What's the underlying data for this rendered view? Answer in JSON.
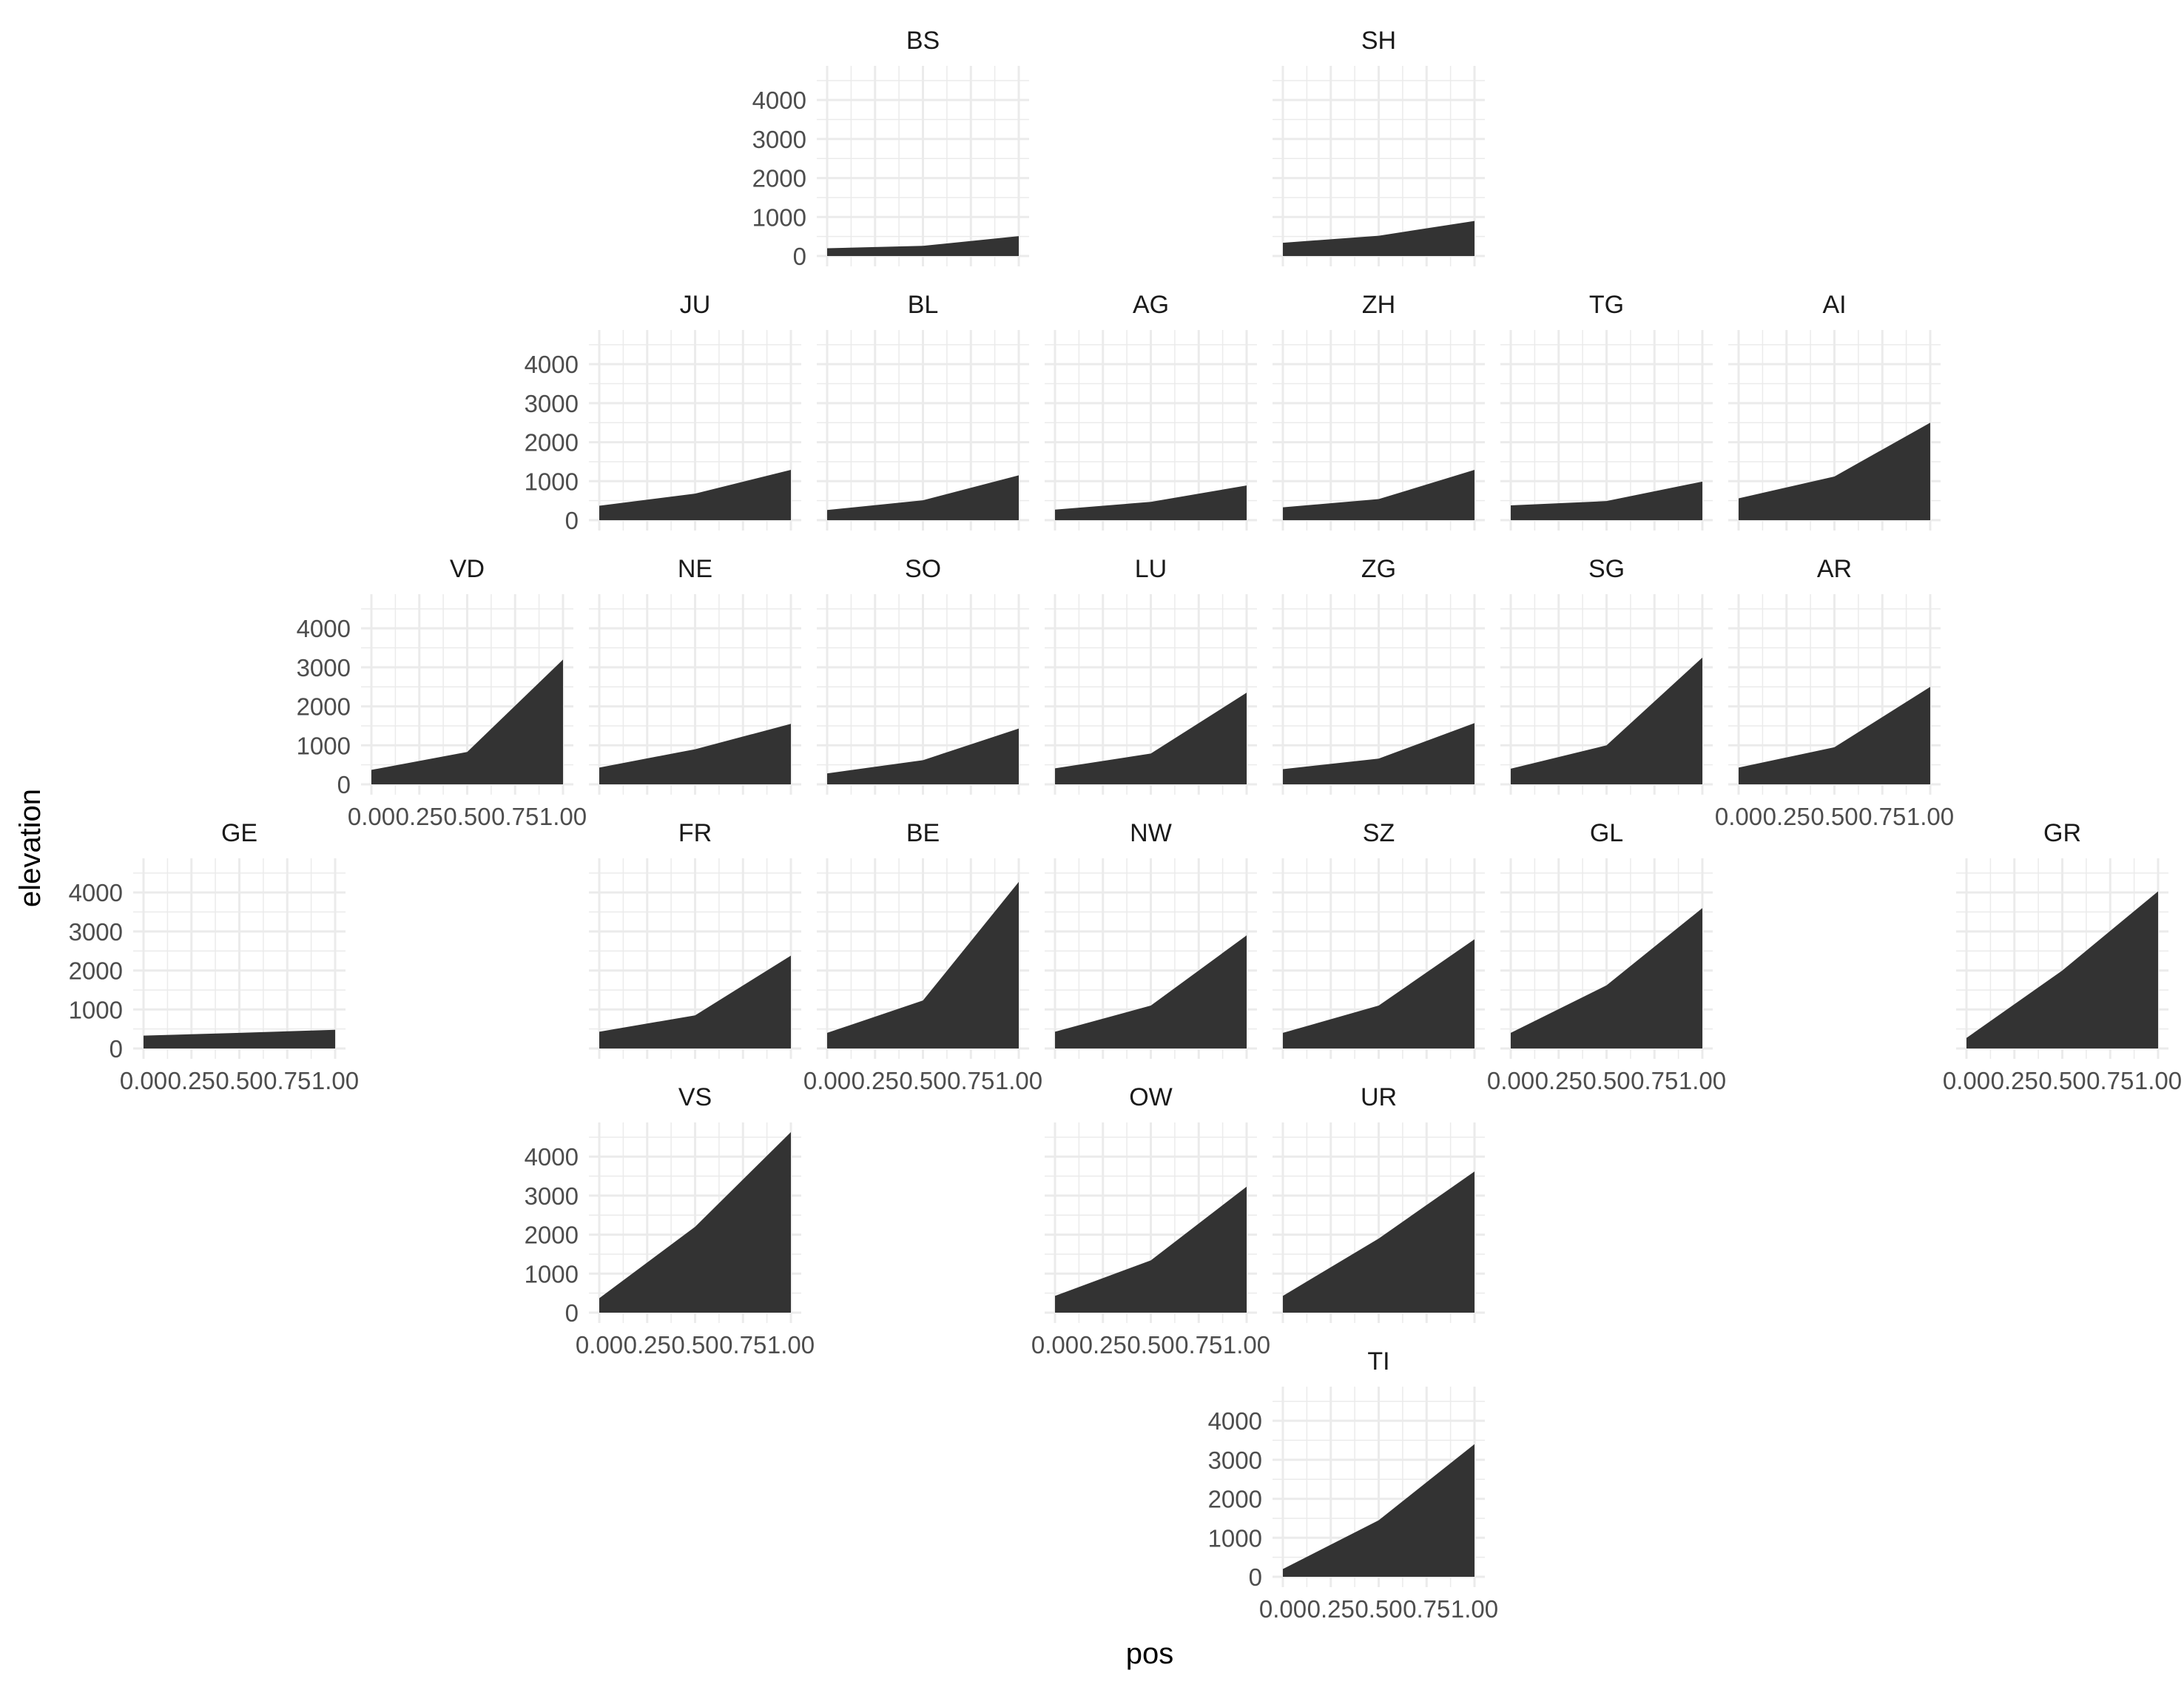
{
  "chart_data": {
    "type": "area",
    "xlabel": "pos",
    "ylabel": "elevation",
    "xlim": [
      0,
      1
    ],
    "ylim": [
      0,
      4800
    ],
    "x_ticks": [
      0.0,
      0.25,
      0.5,
      0.75,
      1.0
    ],
    "x_tick_labels": [
      "0.00",
      "0.25",
      "0.50",
      "0.75",
      "1.00"
    ],
    "y_ticks": [
      0,
      1000,
      2000,
      3000,
      4000
    ],
    "y_tick_labels": [
      "0",
      "1000",
      "2000",
      "3000",
      "4000"
    ],
    "fill_color": "#333333",
    "grid": true,
    "x": [
      0,
      0.5,
      1
    ],
    "panels": [
      {
        "name": "BS",
        "row": 0,
        "col": 3,
        "values": [
          200,
          260,
          510
        ],
        "show_y": true,
        "show_x": false
      },
      {
        "name": "SH",
        "row": 0,
        "col": 5,
        "values": [
          340,
          520,
          900
        ],
        "show_y": false,
        "show_x": false
      },
      {
        "name": "JU",
        "row": 1,
        "col": 2,
        "values": [
          370,
          680,
          1290
        ],
        "show_y": true,
        "show_x": false
      },
      {
        "name": "BL",
        "row": 1,
        "col": 3,
        "values": [
          260,
          510,
          1150
        ],
        "show_y": false,
        "show_x": false
      },
      {
        "name": "AG",
        "row": 1,
        "col": 4,
        "values": [
          270,
          470,
          890
        ],
        "show_y": false,
        "show_x": false
      },
      {
        "name": "ZH",
        "row": 1,
        "col": 5,
        "values": [
          330,
          540,
          1290
        ],
        "show_y": false,
        "show_x": false
      },
      {
        "name": "TG",
        "row": 1,
        "col": 6,
        "values": [
          380,
          490,
          990
        ],
        "show_y": false,
        "show_x": false
      },
      {
        "name": "AI",
        "row": 1,
        "col": 7,
        "values": [
          560,
          1120,
          2500
        ],
        "show_y": false,
        "show_x": false
      },
      {
        "name": "VD",
        "row": 2,
        "col": 1,
        "values": [
          370,
          830,
          3200
        ],
        "show_y": true,
        "show_x": true
      },
      {
        "name": "NE",
        "row": 2,
        "col": 2,
        "values": [
          430,
          900,
          1550
        ],
        "show_y": false,
        "show_x": false
      },
      {
        "name": "SO",
        "row": 2,
        "col": 3,
        "values": [
          280,
          620,
          1430
        ],
        "show_y": false,
        "show_x": false
      },
      {
        "name": "LU",
        "row": 2,
        "col": 4,
        "values": [
          410,
          790,
          2350
        ],
        "show_y": false,
        "show_x": false
      },
      {
        "name": "ZG",
        "row": 2,
        "col": 5,
        "values": [
          390,
          660,
          1570
        ],
        "show_y": false,
        "show_x": false
      },
      {
        "name": "SG",
        "row": 2,
        "col": 6,
        "values": [
          400,
          1000,
          3250
        ],
        "show_y": false,
        "show_x": false
      },
      {
        "name": "AR",
        "row": 2,
        "col": 7,
        "values": [
          430,
          950,
          2500
        ],
        "show_y": false,
        "show_x": true
      },
      {
        "name": "GE",
        "row": 3,
        "col": 0,
        "values": [
          330,
          400,
          480
        ],
        "show_y": true,
        "show_x": true
      },
      {
        "name": "FR",
        "row": 3,
        "col": 2,
        "values": [
          430,
          850,
          2380
        ],
        "show_y": false,
        "show_x": false
      },
      {
        "name": "BE",
        "row": 3,
        "col": 3,
        "values": [
          400,
          1230,
          4270
        ],
        "show_y": false,
        "show_x": true
      },
      {
        "name": "NW",
        "row": 3,
        "col": 4,
        "values": [
          430,
          1100,
          2900
        ],
        "show_y": false,
        "show_x": false
      },
      {
        "name": "SZ",
        "row": 3,
        "col": 5,
        "values": [
          400,
          1100,
          2800
        ],
        "show_y": false,
        "show_x": false
      },
      {
        "name": "GL",
        "row": 3,
        "col": 6,
        "values": [
          400,
          1620,
          3600
        ],
        "show_y": false,
        "show_x": true
      },
      {
        "name": "GR",
        "row": 3,
        "col": 8,
        "values": [
          270,
          2000,
          4030
        ],
        "show_y": false,
        "show_x": true
      },
      {
        "name": "VS",
        "row": 4,
        "col": 2,
        "values": [
          370,
          2200,
          4630
        ],
        "show_y": true,
        "show_x": true
      },
      {
        "name": "OW",
        "row": 4,
        "col": 4,
        "values": [
          430,
          1340,
          3230
        ],
        "show_y": false,
        "show_x": true
      },
      {
        "name": "UR",
        "row": 4,
        "col": 5,
        "values": [
          430,
          1900,
          3620
        ],
        "show_y": false,
        "show_x": false
      },
      {
        "name": "TI",
        "row": 5,
        "col": 5,
        "values": [
          200,
          1450,
          3400
        ],
        "show_y": true,
        "show_x": true
      }
    ]
  }
}
